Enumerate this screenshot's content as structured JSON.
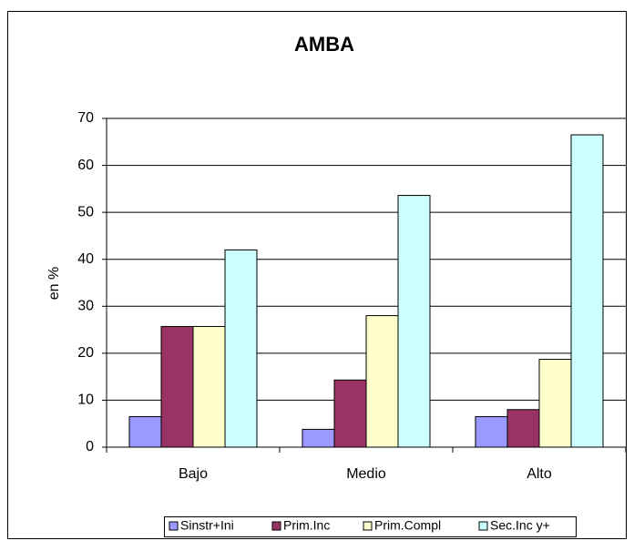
{
  "chart_data": {
    "type": "bar",
    "title": "AMBA",
    "y_label": "en %",
    "categories": [
      "Bajo",
      "Medio",
      "Alto"
    ],
    "series": [
      {
        "name": "Sinstr+Ini",
        "color": "#9999ff",
        "values": [
          6.5,
          3.8,
          6.5
        ]
      },
      {
        "name": "Prim.Inc",
        "color": "#993366",
        "values": [
          25.7,
          14.3,
          8
        ]
      },
      {
        "name": "Prim.Compl",
        "color": "#ffffcc",
        "values": [
          25.7,
          28,
          18.7
        ]
      },
      {
        "name": "Sec.Inc y+",
        "color": "#ccffff",
        "values": [
          42,
          53.6,
          66.5
        ]
      }
    ],
    "ylim": [
      0,
      70
    ],
    "yticks": [
      0,
      10,
      20,
      30,
      40,
      50,
      60,
      70
    ],
    "grid": true,
    "legend": "bottom"
  }
}
